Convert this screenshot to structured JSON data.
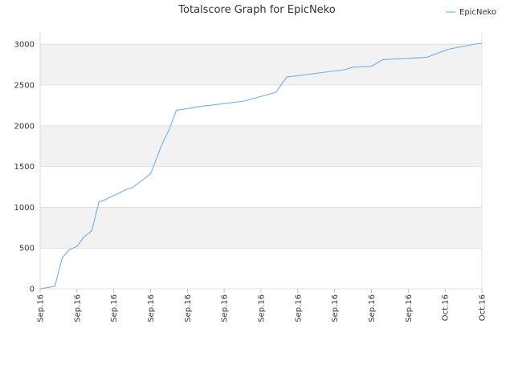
{
  "chart_data": {
    "type": "line",
    "title": "Totalscore Graph for EpicNeko",
    "xlabel": "",
    "ylabel": "",
    "ylim": [
      0,
      3150
    ],
    "yticks": [
      0,
      500,
      1000,
      1500,
      2000,
      2500,
      3000
    ],
    "xtick_labels": [
      "Sep.16",
      "Sep.16",
      "Sep.16",
      "Sep.16",
      "Sep.16",
      "Sep.16",
      "Sep.16",
      "Sep.16",
      "Sep.16",
      "Sep.16",
      "Sep.16",
      "Oct.16",
      "Oct.16"
    ],
    "grid": true,
    "legend_position": "top-right",
    "series": [
      {
        "name": "EpicNeko",
        "color": "#7cb5ec",
        "x": [
          0,
          0.4,
          0.6,
          0.8,
          1.0,
          1.2,
          1.4,
          1.6,
          1.7,
          2.4,
          2.5,
          3.0,
          3.3,
          3.5,
          3.7,
          4.0,
          4.4,
          4.6,
          5.5,
          5.6,
          6.4,
          6.7,
          6.9,
          7.1,
          8.3,
          8.5,
          9.0,
          9.3,
          9.6,
          10.1,
          10.5,
          11.1,
          11.9,
          12.0
        ],
        "y": [
          0,
          30,
          380,
          480,
          520,
          640,
          710,
          1070,
          1080,
          1230,
          1240,
          1410,
          1760,
          1950,
          2190,
          2210,
          2240,
          2250,
          2300,
          2310,
          2410,
          2600,
          2610,
          2620,
          2690,
          2720,
          2730,
          2810,
          2820,
          2830,
          2840,
          2940,
          3010,
          3010
        ]
      }
    ]
  }
}
